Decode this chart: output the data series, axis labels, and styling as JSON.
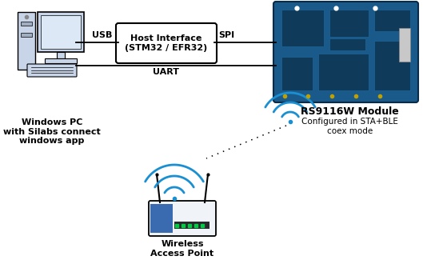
{
  "bg_color": "#ffffff",
  "pc_label": "Windows PC\nwith Silabs connect\nwindows app",
  "host_label": "Host Interface\n(STM32 / EFR32)",
  "usb_label": "USB",
  "spi_label": "SPI",
  "uart_label": "UART",
  "module_label": "RS9116W Module",
  "module_label2": "Configured in STA+BLE\ncoex mode",
  "router_label": "Wireless\nAccess Point",
  "line_color": "#000000",
  "box_color": "#ffffff",
  "box_edge": "#000000",
  "text_color": "#000000",
  "wifi_color": "#1a8fd1",
  "pc_monitor_fill": "#c8d4e8",
  "pc_screen_fill": "#dce8f5",
  "pc_base_fill": "#b0bdd0",
  "pcb_bg": "#1a5a8a",
  "pcb_dark": "#0f3a5a",
  "pcb_mid": "#1e6699",
  "pcb_light": "#2a7ab0",
  "router_body_fill": "#e8eef5",
  "router_blue_fill": "#3a6ab0",
  "router_strip_fill": "#d0dce8"
}
